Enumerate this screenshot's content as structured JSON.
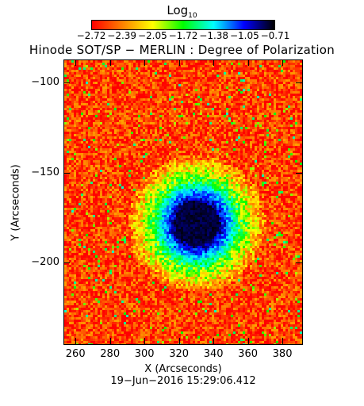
{
  "colorbar": {
    "title_main": "Log",
    "title_sub": "10",
    "ticks": [
      "−2.72",
      "−2.39",
      "−2.05",
      "−1.72",
      "−1.38",
      "−1.05",
      "−0.71"
    ],
    "colors": [
      "#ff0000",
      "#ff8000",
      "#ffff00",
      "#00ff00",
      "#00ffff",
      "#0000ff",
      "#000000"
    ]
  },
  "chart_data": {
    "type": "heatmap",
    "title": "Hinode SOT/SP − MERLIN : Degree of Polarization",
    "xlabel": "X (Arcseconds)",
    "ylabel": "Y (Arcseconds)",
    "xlim": [
      253,
      391
    ],
    "ylim": [
      -245,
      -87
    ],
    "xticks": [
      260,
      280,
      300,
      320,
      340,
      360,
      380
    ],
    "xtick_labels": [
      "260",
      "280",
      "300",
      "320",
      "340",
      "360",
      "380"
    ],
    "yticks": [
      -100,
      -150,
      -200
    ],
    "ytick_labels": [
      "−100",
      "−150",
      "−200"
    ],
    "value_range": [
      -2.72,
      -0.71
    ],
    "features": [
      {
        "kind": "sunspot_umbra",
        "center": [
          330,
          -178
        ],
        "radius": 13,
        "value": -0.75
      },
      {
        "kind": "penumbra",
        "center": [
          331,
          -178
        ],
        "radius": 24,
        "value": -1.2
      },
      {
        "kind": "moat",
        "center": [
          332,
          -178
        ],
        "radius": 40,
        "value": -1.9
      }
    ],
    "timestamp": "19−Jun−2016 15:29:06.412"
  }
}
